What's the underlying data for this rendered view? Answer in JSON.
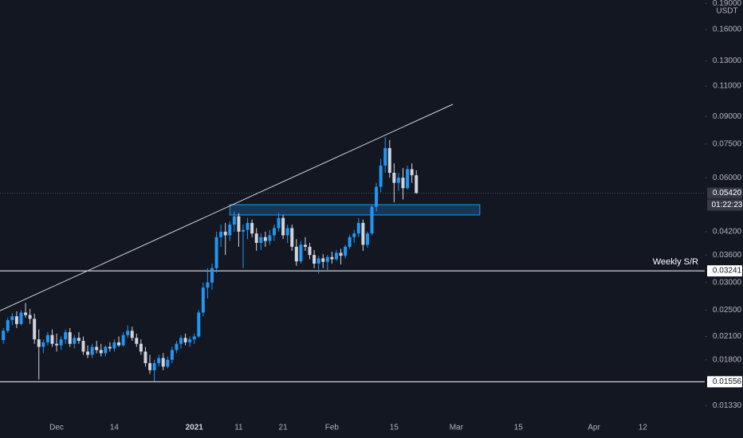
{
  "chart_data": {
    "type": "candlestick",
    "currency": "USDT",
    "log_scale": true,
    "grid": false,
    "up_color": "#2196f3",
    "down_color": "#d1d4dc",
    "ylim": [
      0.01192,
      0.1944
    ],
    "yticks": [
      {
        "value": 0.19,
        "label": "0.19000"
      },
      {
        "value": 0.16,
        "label": "0.16000"
      },
      {
        "value": 0.13,
        "label": "0.13000"
      },
      {
        "value": 0.11,
        "label": "0.11000"
      },
      {
        "value": 0.09,
        "label": "0.09000"
      },
      {
        "value": 0.075,
        "label": "0.07500"
      },
      {
        "value": 0.06,
        "label": "0.06000"
      },
      {
        "value": 0.042,
        "label": "0.04200"
      },
      {
        "value": 0.036,
        "label": "0.03600"
      },
      {
        "value": 0.03,
        "label": "0.03000"
      },
      {
        "value": 0.025,
        "label": "0.02500"
      },
      {
        "value": 0.021,
        "label": "0.02100"
      },
      {
        "value": 0.018,
        "label": "0.01800"
      },
      {
        "value": 0.0133,
        "label": "0.01330"
      }
    ],
    "categories": [
      null,
      null,
      null,
      null,
      null,
      null,
      null,
      null,
      null,
      null,
      null,
      null,
      "Dec",
      null,
      null,
      null,
      null,
      null,
      null,
      null,
      null,
      null,
      null,
      null,
      null,
      "14",
      null,
      null,
      null,
      null,
      null,
      null,
      null,
      null,
      null,
      null,
      null,
      null,
      null,
      null,
      null,
      null,
      null,
      "2021",
      null,
      null,
      null,
      null,
      null,
      null,
      null,
      null,
      null,
      "11",
      null,
      null,
      null,
      null,
      null,
      null,
      null,
      null,
      null,
      "21",
      null,
      null,
      null,
      null,
      null,
      null,
      null,
      null,
      null,
      null,
      "Feb",
      null,
      null,
      null,
      null,
      null,
      null,
      null,
      null,
      null,
      null,
      null,
      null,
      null,
      "15",
      null,
      null,
      null,
      null,
      null,
      null,
      null,
      null,
      null,
      null,
      null,
      null,
      null,
      "Mar",
      null,
      null,
      null,
      null,
      null,
      null,
      null,
      null,
      null,
      null,
      null,
      null,
      null,
      "15",
      null,
      null,
      null,
      null,
      null,
      null,
      null,
      null,
      null,
      null,
      null,
      null,
      null,
      null,
      null,
      null,
      "Apr",
      null,
      null,
      null,
      null,
      null,
      null,
      null,
      null,
      null,
      null,
      "12",
      null,
      null,
      null,
      null,
      null,
      null,
      null,
      null,
      null,
      null,
      null,
      null,
      null
    ],
    "open": [
      0.0205,
      0.0218,
      0.0234,
      0.024,
      0.0228,
      0.0246,
      0.0242,
      0.0236,
      0.0206,
      0.0196,
      0.0202,
      0.0212,
      0.02,
      0.0198,
      0.0206,
      0.0216,
      0.02,
      0.0208,
      0.0204,
      0.019,
      0.0186,
      0.0196,
      0.0192,
      0.0188,
      0.0196,
      0.0194,
      0.0202,
      0.0198,
      0.0212,
      0.0218,
      0.0208,
      0.02,
      0.019,
      0.0176,
      0.0168,
      0.0176,
      0.0182,
      0.0172,
      0.018,
      0.0192,
      0.02,
      0.0208,
      0.0202,
      0.0206,
      0.021,
      0.0246,
      0.029,
      0.03,
      0.033,
      0.0405,
      0.042,
      0.041,
      0.044,
      0.0465,
      0.042,
      0.0425,
      0.0445,
      0.0415,
      0.039,
      0.0405,
      0.0395,
      0.041,
      0.043,
      0.046,
      0.041,
      0.043,
      0.038,
      0.0345,
      0.0385,
      0.038,
      0.036,
      0.034,
      0.0352,
      0.0344,
      0.0355,
      0.035,
      0.0365,
      0.0358,
      0.038,
      0.0405,
      0.0415,
      0.0445,
      0.0385,
      0.0415,
      0.0495,
      0.0565,
      0.065,
      0.073,
      0.062,
      0.058,
      0.06,
      0.056,
      0.0635,
      0.061,
      null,
      null,
      null,
      null,
      null,
      null,
      null,
      null,
      null,
      null,
      null,
      null,
      null,
      null,
      null,
      null,
      null,
      null,
      null,
      null,
      null,
      null,
      null,
      null,
      null,
      null,
      null,
      null,
      null,
      null,
      null,
      null,
      null,
      null,
      null,
      null,
      null,
      null,
      null,
      null,
      null,
      null,
      null,
      null,
      null,
      null,
      null,
      null,
      null,
      null,
      null,
      null,
      null,
      null,
      null,
      null,
      null,
      null,
      null,
      null,
      null,
      null,
      null,
      null
    ],
    "high": [
      0.0222,
      0.0238,
      0.0245,
      0.0248,
      0.025,
      0.0262,
      0.0252,
      0.0244,
      0.022,
      0.0206,
      0.0216,
      0.022,
      0.0214,
      0.021,
      0.022,
      0.0222,
      0.0212,
      0.0216,
      0.021,
      0.0198,
      0.02,
      0.0204,
      0.02,
      0.0198,
      0.0202,
      0.0206,
      0.021,
      0.0216,
      0.0226,
      0.0224,
      0.0214,
      0.0206,
      0.0196,
      0.0186,
      0.018,
      0.0186,
      0.0188,
      0.0184,
      0.0196,
      0.0204,
      0.0212,
      0.0214,
      0.021,
      0.0214,
      0.025,
      0.03,
      0.033,
      0.034,
      0.042,
      0.044,
      0.0445,
      0.045,
      0.048,
      0.0475,
      0.044,
      0.046,
      0.0455,
      0.043,
      0.0415,
      0.042,
      0.0425,
      0.044,
      0.0475,
      0.047,
      0.044,
      0.044,
      0.04,
      0.0395,
      0.0405,
      0.039,
      0.0372,
      0.0358,
      0.0362,
      0.036,
      0.0368,
      0.0372,
      0.0375,
      0.0385,
      0.0412,
      0.0425,
      0.046,
      0.0455,
      0.042,
      0.05,
      0.058,
      0.068,
      0.0785,
      0.077,
      0.066,
      0.062,
      0.064,
      0.065,
      0.066,
      0.063,
      null,
      null,
      null,
      null,
      null,
      null,
      null,
      null,
      null,
      null,
      null,
      null,
      null,
      null,
      null,
      null,
      null,
      null,
      null,
      null,
      null,
      null,
      null,
      null,
      null,
      null,
      null,
      null,
      null,
      null,
      null,
      null,
      null,
      null,
      null,
      null,
      null,
      null,
      null,
      null,
      null,
      null,
      null,
      null,
      null,
      null,
      null,
      null,
      null,
      null,
      null,
      null,
      null,
      null,
      null,
      null,
      null,
      null,
      null,
      null,
      null,
      null,
      null,
      null
    ],
    "low": [
      0.02,
      0.0215,
      0.0226,
      0.0222,
      0.0226,
      0.0238,
      0.0228,
      0.02,
      0.0158,
      0.0188,
      0.0198,
      0.0196,
      0.019,
      0.0192,
      0.02,
      0.0196,
      0.0194,
      0.02,
      0.0186,
      0.0182,
      0.0182,
      0.0188,
      0.0184,
      0.0184,
      0.019,
      0.019,
      0.0196,
      0.0196,
      0.0208,
      0.0204,
      0.0196,
      0.0186,
      0.0172,
      0.0164,
      0.0156,
      0.0172,
      0.0168,
      0.017,
      0.0176,
      0.0188,
      0.0194,
      0.0198,
      0.0196,
      0.02,
      0.0208,
      0.024,
      0.027,
      0.0286,
      0.032,
      0.038,
      0.036,
      0.0395,
      0.042,
      0.038,
      0.033,
      0.04,
      0.0405,
      0.037,
      0.0372,
      0.038,
      0.0385,
      0.0395,
      0.042,
      0.04,
      0.039,
      0.037,
      0.0335,
      0.034,
      0.037,
      0.035,
      0.033,
      0.0318,
      0.033,
      0.0326,
      0.034,
      0.0346,
      0.0338,
      0.0352,
      0.0375,
      0.039,
      0.0405,
      0.037,
      0.0378,
      0.041,
      0.048,
      0.0545,
      0.062,
      0.06,
      0.051,
      0.055,
      0.052,
      0.0555,
      0.058,
      0.054,
      null,
      null,
      null,
      null,
      null,
      null,
      null,
      null,
      null,
      null,
      null,
      null,
      null,
      null,
      null,
      null,
      null,
      null,
      null,
      null,
      null,
      null,
      null,
      null,
      null,
      null,
      null,
      null,
      null,
      null,
      null,
      null,
      null,
      null,
      null,
      null,
      null,
      null,
      null,
      null,
      null,
      null,
      null,
      null,
      null,
      null,
      null,
      null,
      null,
      null,
      null,
      null,
      null,
      null,
      null,
      null,
      null,
      null,
      null,
      null,
      null,
      null,
      null,
      null
    ],
    "close": [
      0.0218,
      0.0234,
      0.024,
      0.0228,
      0.0246,
      0.0242,
      0.0236,
      0.0206,
      0.0196,
      0.0202,
      0.0212,
      0.02,
      0.0198,
      0.0206,
      0.0216,
      0.02,
      0.0208,
      0.0204,
      0.019,
      0.0186,
      0.0196,
      0.0192,
      0.0188,
      0.0196,
      0.0194,
      0.0202,
      0.0198,
      0.0212,
      0.0218,
      0.0208,
      0.02,
      0.019,
      0.0176,
      0.0168,
      0.0176,
      0.0182,
      0.0172,
      0.018,
      0.0192,
      0.02,
      0.0208,
      0.0202,
      0.0206,
      0.021,
      0.0246,
      0.029,
      0.03,
      0.033,
      0.0405,
      0.042,
      0.041,
      0.044,
      0.0465,
      0.042,
      0.0425,
      0.0445,
      0.0415,
      0.039,
      0.0405,
      0.0395,
      0.041,
      0.043,
      0.046,
      0.041,
      0.043,
      0.038,
      0.0345,
      0.0385,
      0.038,
      0.036,
      0.034,
      0.0352,
      0.0344,
      0.0355,
      0.035,
      0.0365,
      0.0358,
      0.038,
      0.0405,
      0.0415,
      0.0445,
      0.0385,
      0.0415,
      0.0495,
      0.0565,
      0.065,
      0.073,
      0.062,
      0.058,
      0.06,
      0.056,
      0.0635,
      0.061,
      0.0542,
      null,
      null,
      null,
      null,
      null,
      null,
      null,
      null,
      null,
      null,
      null,
      null,
      null,
      null,
      null,
      null,
      null,
      null,
      null,
      null,
      null,
      null,
      null,
      null,
      null,
      null,
      null,
      null,
      null,
      null,
      null,
      null,
      null,
      null,
      null,
      null,
      null,
      null,
      null,
      null,
      null,
      null,
      null,
      null,
      null,
      null,
      null,
      null,
      null,
      null,
      null,
      null,
      null,
      null,
      null,
      null,
      null,
      null,
      null,
      null,
      null,
      null,
      null,
      null
    ],
    "trendline": {
      "start": 0.0249,
      "end": 0.0975
    },
    "zone": {
      "low": 0.0469,
      "high": 0.0502
    },
    "price_lines": [
      {
        "value": 0.03241,
        "label": "0.03241",
        "annotation": "Weekly S/R"
      },
      {
        "value": 0.01556,
        "label": "0.01556"
      }
    ],
    "current_price": {
      "value": 0.0542,
      "label": "0.05420",
      "countdown": "01:22:23"
    }
  }
}
